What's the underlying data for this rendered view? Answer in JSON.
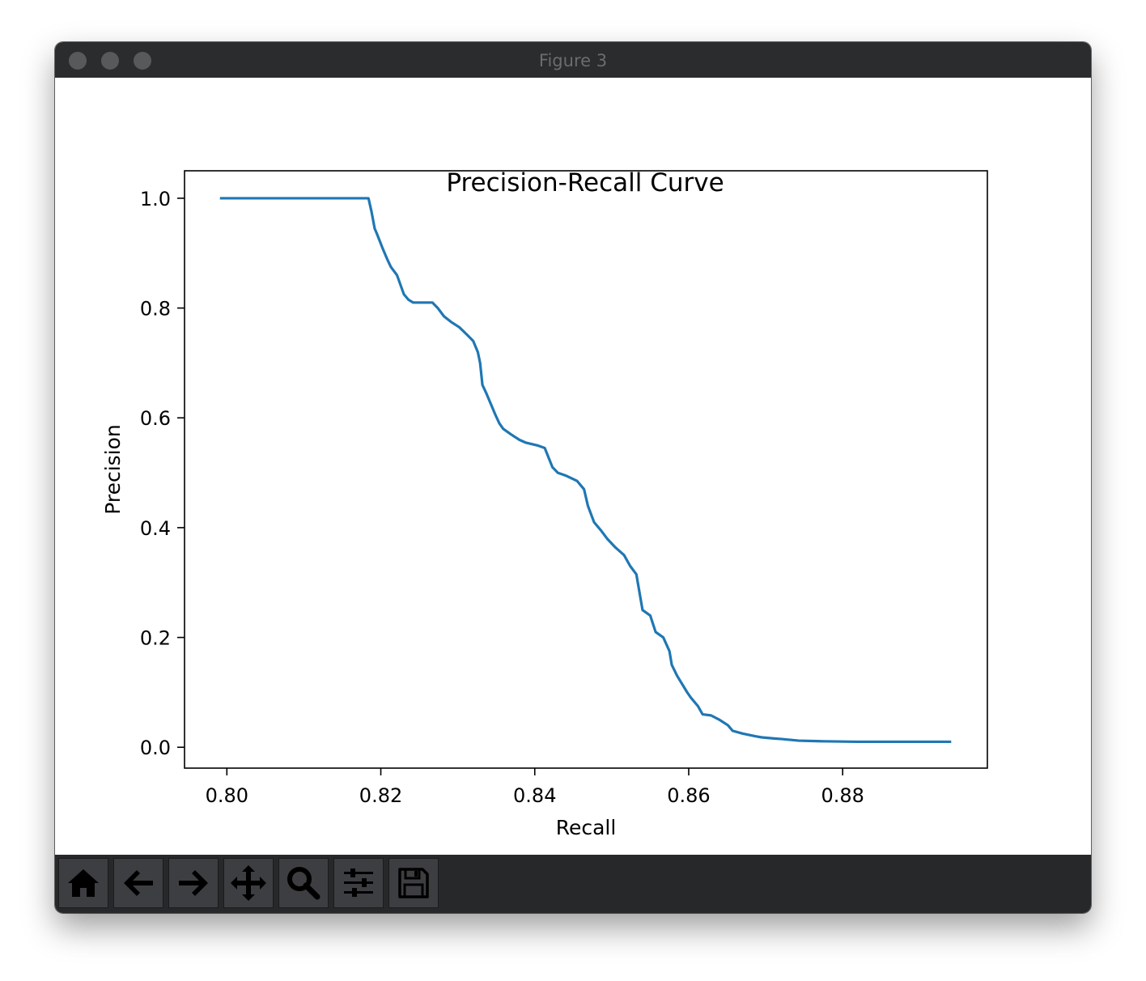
{
  "window": {
    "title": "Figure 3"
  },
  "toolbar": {
    "buttons": [
      {
        "icon": "home-icon",
        "name": "home-button"
      },
      {
        "icon": "back-arrow-icon",
        "name": "back-button"
      },
      {
        "icon": "forward-arrow-icon",
        "name": "forward-button"
      },
      {
        "icon": "pan-move-icon",
        "name": "pan-button"
      },
      {
        "icon": "zoom-magnifier-icon",
        "name": "zoom-button"
      },
      {
        "icon": "sliders-icon",
        "name": "configure-subplots-button"
      },
      {
        "icon": "save-floppy-icon",
        "name": "save-button"
      }
    ]
  },
  "chart_data": {
    "type": "line",
    "title": "Precision-Recall Curve",
    "xlabel": "Recall",
    "ylabel": "Precision",
    "xlim": [
      0.7945,
      0.8988
    ],
    "ylim": [
      -0.038,
      1.05
    ],
    "xticks": [
      "0.80",
      "0.82",
      "0.84",
      "0.86",
      "0.88"
    ],
    "yticks": [
      "0.0",
      "0.2",
      "0.4",
      "0.6",
      "0.8",
      "1.0"
    ],
    "xtick_values": [
      0.8,
      0.82,
      0.84,
      0.86,
      0.88
    ],
    "ytick_values": [
      0.0,
      0.2,
      0.4,
      0.6,
      0.8,
      1.0
    ],
    "grid": false,
    "line_color": "#1f77b4",
    "series": [
      {
        "x": [
          0.7991,
          0.8184,
          0.8188,
          0.8192,
          0.8195,
          0.8202,
          0.8208,
          0.8213,
          0.8221,
          0.823,
          0.8236,
          0.8242,
          0.8252,
          0.8267,
          0.8274,
          0.8282,
          0.8291,
          0.8302,
          0.8313,
          0.832,
          0.8326,
          0.8329,
          0.8332,
          0.8337,
          0.8343,
          0.8349,
          0.8354,
          0.8359,
          0.8369,
          0.838,
          0.8388,
          0.8403,
          0.8413,
          0.8423,
          0.843,
          0.844,
          0.8455,
          0.8464,
          0.8469,
          0.8477,
          0.8486,
          0.8494,
          0.8504,
          0.8516,
          0.8524,
          0.8532,
          0.854,
          0.855,
          0.8557,
          0.8562,
          0.8567,
          0.8575,
          0.8578,
          0.8585,
          0.8598,
          0.8603,
          0.8606,
          0.8612,
          0.8618,
          0.8629,
          0.864,
          0.8651,
          0.8657,
          0.867,
          0.8687,
          0.8695,
          0.8711,
          0.8721,
          0.8743,
          0.8771,
          0.8819,
          0.8864,
          0.8893,
          0.8941
        ],
        "y": [
          1.0,
          1.0,
          0.975,
          0.945,
          0.935,
          0.91,
          0.89,
          0.875,
          0.86,
          0.825,
          0.815,
          0.81,
          0.81,
          0.81,
          0.8,
          0.785,
          0.775,
          0.765,
          0.75,
          0.74,
          0.72,
          0.7,
          0.66,
          0.645,
          0.625,
          0.605,
          0.59,
          0.58,
          0.57,
          0.56,
          0.555,
          0.55,
          0.545,
          0.51,
          0.5,
          0.495,
          0.485,
          0.47,
          0.44,
          0.41,
          0.395,
          0.38,
          0.365,
          0.35,
          0.33,
          0.315,
          0.25,
          0.24,
          0.21,
          0.205,
          0.2,
          0.175,
          0.15,
          0.13,
          0.1,
          0.09,
          0.085,
          0.075,
          0.06,
          0.058,
          0.05,
          0.04,
          0.03,
          0.025,
          0.02,
          0.018,
          0.016,
          0.015,
          0.012,
          0.011,
          0.01,
          0.01,
          0.01,
          0.01
        ]
      }
    ]
  }
}
